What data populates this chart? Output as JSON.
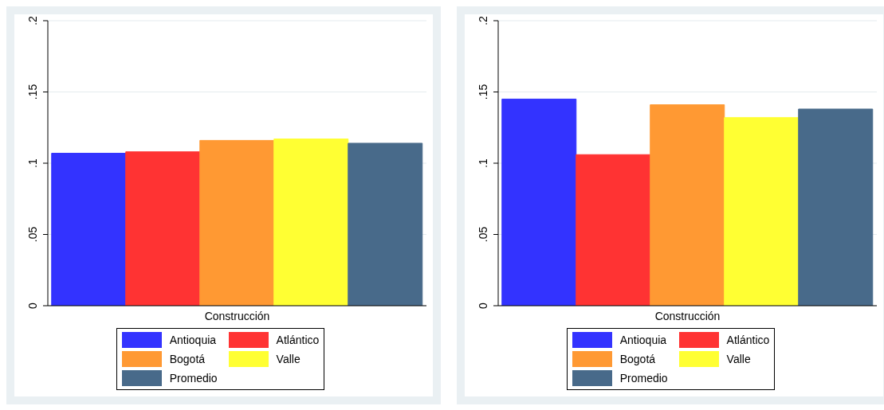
{
  "chart_data": [
    {
      "type": "bar",
      "categories": [
        "Construcción"
      ],
      "series": [
        {
          "name": "Antioquia",
          "color": "#3333ff",
          "values": [
            0.107
          ]
        },
        {
          "name": "Atlántico",
          "color": "#ff3333",
          "values": [
            0.108
          ]
        },
        {
          "name": "Bogotá",
          "color": "#ff9933",
          "values": [
            0.116
          ]
        },
        {
          "name": "Valle",
          "color": "#ffff33",
          "values": [
            0.117
          ]
        },
        {
          "name": "Promedio",
          "color": "#486a8a",
          "values": [
            0.114
          ]
        }
      ],
      "ylim": [
        0,
        0.2
      ],
      "yticks": [
        {
          "value": 0,
          "label": "0"
        },
        {
          "value": 0.05,
          "label": ".05"
        },
        {
          "value": 0.1,
          "label": ".1"
        },
        {
          "value": 0.15,
          "label": ".15"
        },
        {
          "value": 0.2,
          "label": ".2"
        }
      ],
      "grid": "y",
      "legend": "bottom"
    },
    {
      "type": "bar",
      "categories": [
        "Construcción"
      ],
      "series": [
        {
          "name": "Antioquia",
          "color": "#3333ff",
          "values": [
            0.145
          ]
        },
        {
          "name": "Atlántico",
          "color": "#ff3333",
          "values": [
            0.106
          ]
        },
        {
          "name": "Bogotá",
          "color": "#ff9933",
          "values": [
            0.141
          ]
        },
        {
          "name": "Valle",
          "color": "#ffff33",
          "values": [
            0.132
          ]
        },
        {
          "name": "Promedio",
          "color": "#486a8a",
          "values": [
            0.138
          ]
        }
      ],
      "ylim": [
        0,
        0.2
      ],
      "yticks": [
        {
          "value": 0,
          "label": "0"
        },
        {
          "value": 0.05,
          "label": ".05"
        },
        {
          "value": 0.1,
          "label": ".1"
        },
        {
          "value": 0.15,
          "label": ".15"
        },
        {
          "value": 0.2,
          "label": ".2"
        }
      ],
      "grid": "y",
      "legend": "bottom"
    }
  ]
}
